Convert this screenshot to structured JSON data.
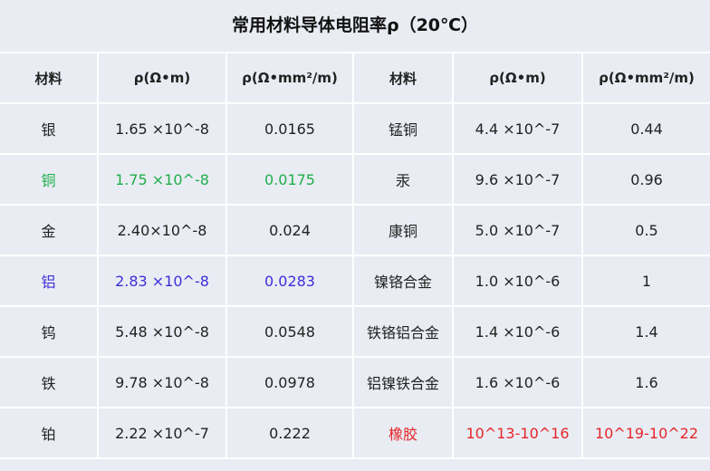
{
  "title": "常用材料导体电阻率ρ（20℃）",
  "headers": [
    "材料",
    "ρ(Ω•m)",
    "ρ(Ω•mm²/m)",
    "材料",
    "ρ(Ω•m)",
    "ρ(Ω•mm²/m)"
  ],
  "colors": {
    "green": "#1fae4b",
    "blue": "#3b2fd8",
    "red": "#e5262a",
    "default": "#222222"
  },
  "rows": [
    {
      "left": {
        "material": "银",
        "rho_m": "1.65 ×10^-8",
        "rho_mm": "0.0165",
        "color": "default"
      },
      "right": {
        "material": "锰铜",
        "rho_m": "4.4 ×10^-7",
        "rho_mm": "0.44",
        "color": "default"
      }
    },
    {
      "left": {
        "material": "铜",
        "rho_m": "1.75 ×10^-8",
        "rho_mm": "0.0175",
        "color": "green"
      },
      "right": {
        "material": "汞",
        "rho_m": "9.6 ×10^-7",
        "rho_mm": "0.96",
        "color": "default"
      }
    },
    {
      "left": {
        "material": "金",
        "rho_m": "2.40×10^-8",
        "rho_mm": "0.024",
        "color": "default"
      },
      "right": {
        "material": "康铜",
        "rho_m": "5.0 ×10^-7",
        "rho_mm": "0.5",
        "color": "default"
      }
    },
    {
      "left": {
        "material": "铝",
        "rho_m": "2.83 ×10^-8",
        "rho_mm": "0.0283",
        "color": "blue"
      },
      "right": {
        "material": "镍铬合金",
        "rho_m": "1.0 ×10^-6",
        "rho_mm": "1",
        "color": "default"
      }
    },
    {
      "left": {
        "material": "钨",
        "rho_m": "5.48 ×10^-8",
        "rho_mm": "0.0548",
        "color": "default"
      },
      "right": {
        "material": "铁铬铝合金",
        "rho_m": "1.4 ×10^-6",
        "rho_mm": "1.4",
        "color": "default"
      }
    },
    {
      "left": {
        "material": "铁",
        "rho_m": "9.78 ×10^-8",
        "rho_mm": "0.0978",
        "color": "default"
      },
      "right": {
        "material": "铝镍铁合金",
        "rho_m": "1.6 ×10^-6",
        "rho_mm": "1.6",
        "color": "default"
      }
    },
    {
      "left": {
        "material": "铂",
        "rho_m": "2.22 ×10^-7",
        "rho_mm": "0.222",
        "color": "default"
      },
      "right": {
        "material": "橡胶",
        "rho_m": "10^13-10^16",
        "rho_mm": "10^19-10^22",
        "color": "red"
      }
    }
  ]
}
